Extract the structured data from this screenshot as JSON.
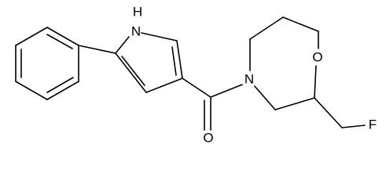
{
  "atoms": [
    {
      "label": "H"
    },
    {
      "label": "N"
    },
    {
      "label": "N"
    },
    {
      "label": "O"
    },
    {
      "label": "O"
    },
    {
      "label": "F"
    }
  ]
}
